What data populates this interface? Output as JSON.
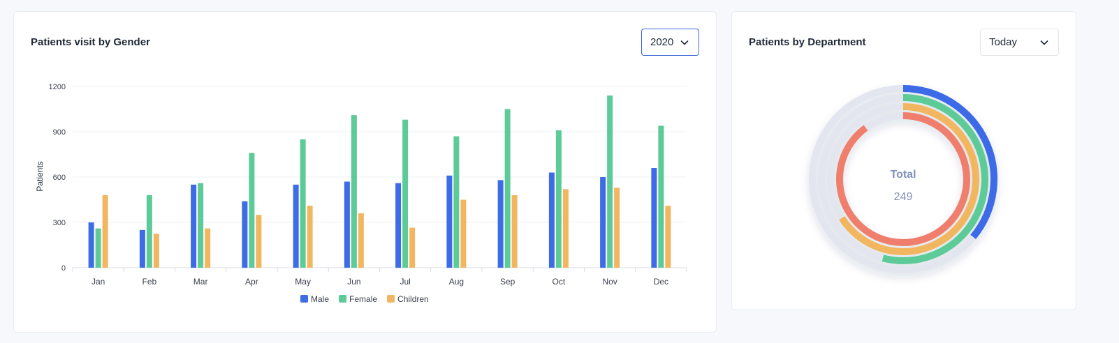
{
  "gender_card": {
    "title": "Patients visit by Gender",
    "year_select": {
      "value": "2020"
    }
  },
  "dept_card": {
    "title": "Patients by Department",
    "period_select": {
      "value": "Today"
    },
    "center_label": "Total",
    "center_value": "249"
  },
  "colors": {
    "male": "#3e6be6",
    "female": "#5ccb98",
    "children": "#f2b661",
    "red": "#ef7f6c",
    "track": "#e3e5ef",
    "grid": "#eef0f4",
    "axis": "#d9dce3",
    "center_text": "#8292bd"
  },
  "chart_data": {
    "type": "bar",
    "categories": [
      "Jan",
      "Feb",
      "Mar",
      "Apr",
      "May",
      "Jun",
      "Jul",
      "Aug",
      "Sep",
      "Oct",
      "Nov",
      "Dec"
    ],
    "series": [
      {
        "name": "Male",
        "values": [
          300,
          250,
          550,
          440,
          550,
          570,
          560,
          610,
          580,
          630,
          600,
          660
        ]
      },
      {
        "name": "Female",
        "values": [
          260,
          480,
          560,
          760,
          850,
          1010,
          980,
          870,
          1050,
          910,
          1140,
          940
        ]
      },
      {
        "name": "Children",
        "values": [
          480,
          225,
          260,
          350,
          410,
          360,
          265,
          450,
          480,
          520,
          530,
          410
        ]
      }
    ],
    "ylabel": "Patients",
    "xlabel": "",
    "ylim": [
      0,
      1200
    ],
    "yticks": [
      0,
      300,
      600,
      900,
      1200
    ],
    "grid": true,
    "legend": "bottom-center"
  },
  "department_rings": [
    {
      "color": "#3e6be6",
      "fraction": 0.36
    },
    {
      "color": "#5ccb98",
      "fraction": 0.54
    },
    {
      "color": "#f2b661",
      "fraction": 0.66
    },
    {
      "color": "#ef7f6c",
      "fraction": 0.9
    }
  ]
}
